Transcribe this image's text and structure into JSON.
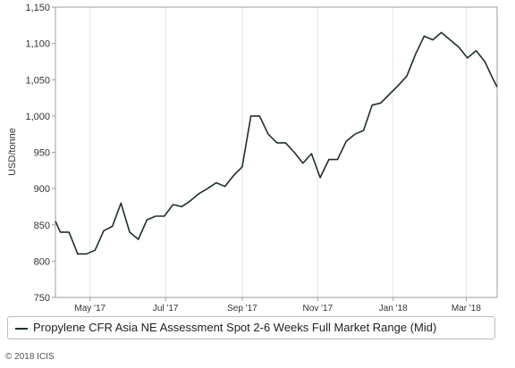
{
  "chart_data": {
    "type": "line",
    "ylabel": "USD/tonne",
    "ylim": [
      750,
      1150
    ],
    "yticks": [
      750,
      800,
      850,
      900,
      950,
      1000,
      1050,
      1100,
      1150
    ],
    "ytick_labels": [
      "750",
      "800",
      "850",
      "900",
      "950",
      "1,000",
      "1,050",
      "1,100",
      "1,150"
    ],
    "xlim": [
      "2017-04-03",
      "2018-03-26"
    ],
    "xticks": [
      {
        "date": "2017-05-01",
        "label": "May '17"
      },
      {
        "date": "2017-07-01",
        "label": "Jul '17"
      },
      {
        "date": "2017-09-01",
        "label": "Sep '17"
      },
      {
        "date": "2017-11-01",
        "label": "Nov '17"
      },
      {
        "date": "2018-01-01",
        "label": "Jan '18"
      },
      {
        "date": "2018-03-01",
        "label": "Mar '18"
      }
    ],
    "grid": "vertical",
    "legend_position": "bottom",
    "color": "#1f2f2f",
    "series": [
      {
        "name": "Propylene CFR Asia NE Assessment Spot 2-6 Weeks Full Market Range (Mid)",
        "x": [
          "2017-04-03",
          "2017-04-07",
          "2017-04-14",
          "2017-04-21",
          "2017-04-28",
          "2017-05-05",
          "2017-05-12",
          "2017-05-19",
          "2017-05-26",
          "2017-06-02",
          "2017-06-09",
          "2017-06-16",
          "2017-06-23",
          "2017-06-30",
          "2017-07-07",
          "2017-07-14",
          "2017-07-21",
          "2017-07-28",
          "2017-08-04",
          "2017-08-11",
          "2017-08-18",
          "2017-08-25",
          "2017-09-01",
          "2017-09-08",
          "2017-09-15",
          "2017-09-22",
          "2017-09-29",
          "2017-10-06",
          "2017-10-13",
          "2017-10-20",
          "2017-10-27",
          "2017-11-03",
          "2017-11-10",
          "2017-11-17",
          "2017-11-24",
          "2017-12-01",
          "2017-12-08",
          "2017-12-15",
          "2017-12-22",
          "2017-12-29",
          "2018-01-05",
          "2018-01-12",
          "2018-01-19",
          "2018-01-26",
          "2018-02-02",
          "2018-02-09",
          "2018-02-16",
          "2018-02-23",
          "2018-03-02",
          "2018-03-09",
          "2018-03-16",
          "2018-03-23",
          "2018-03-26"
        ],
        "values": [
          855,
          840,
          840,
          810,
          810,
          815,
          842,
          848,
          880,
          840,
          830,
          857,
          862,
          862,
          878,
          875,
          883,
          893,
          900,
          908,
          903,
          918,
          930,
          1000,
          1000,
          975,
          963,
          963,
          950,
          935,
          948,
          915,
          940,
          940,
          965,
          975,
          980,
          1015,
          1018,
          1030,
          1042,
          1055,
          1085,
          1110,
          1105,
          1115,
          1105,
          1095,
          1080,
          1090,
          1075,
          1050,
          1040
        ]
      }
    ]
  },
  "legend": {
    "label": "Propylene CFR Asia NE Assessment Spot 2-6 Weeks Full Market Range (Mid)"
  },
  "footer": {
    "copyright": "© 2018 ICIS"
  }
}
